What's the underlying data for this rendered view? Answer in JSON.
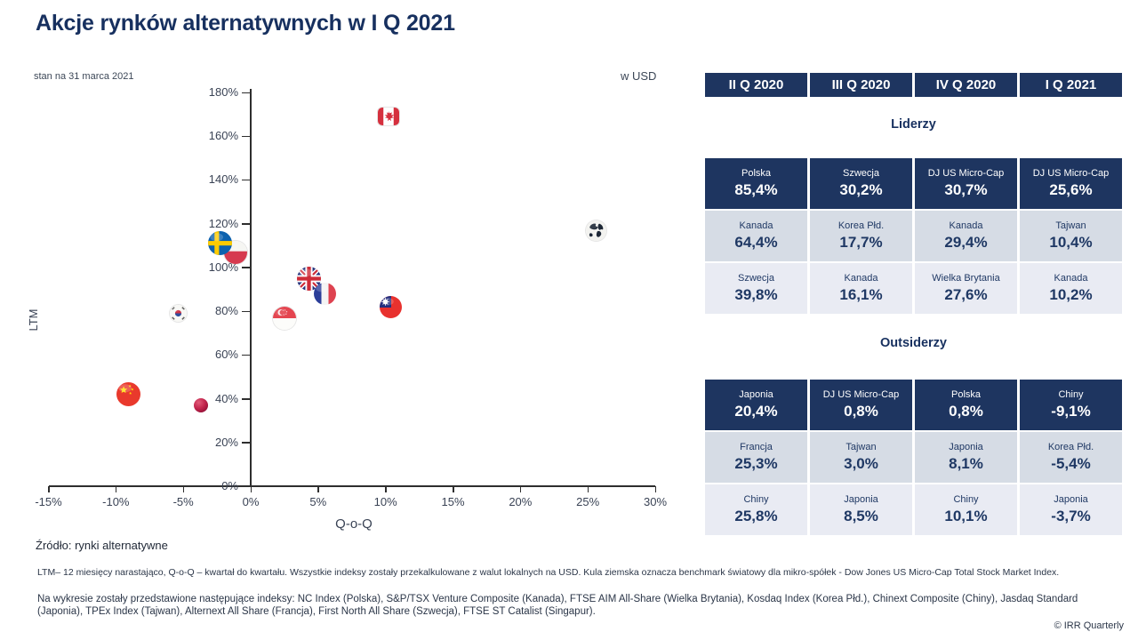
{
  "title": "Akcje rynków alternatywnych w I Q 2021",
  "subtitle": "stan na 31 marca 2021",
  "currency_note": "w USD",
  "chart_data": {
    "type": "scatter",
    "xlabel": "Q-o-Q",
    "ylabel": "LTM",
    "x_range": [
      -15,
      30
    ],
    "y_range": [
      0,
      180
    ],
    "x_ticks": [
      -15,
      -10,
      -5,
      0,
      5,
      10,
      15,
      20,
      25,
      30
    ],
    "y_ticks": [
      0,
      20,
      40,
      60,
      80,
      100,
      120,
      140,
      160,
      180
    ],
    "grid": false,
    "legend": "none",
    "units": "%",
    "points": [
      {
        "name": "Chiny",
        "flag": "china",
        "qoq": -9.1,
        "ltm": 42,
        "size": 27
      },
      {
        "name": "Korea Płd.",
        "flag": "korea",
        "qoq": -5.4,
        "ltm": 79,
        "size": 19
      },
      {
        "name": "Japonia",
        "flag": "japan",
        "qoq": -3.7,
        "ltm": 37,
        "size": 16
      },
      {
        "name": "Polska",
        "flag": "poland",
        "qoq": -1.1,
        "ltm": 107,
        "size": 26,
        "z": 1
      },
      {
        "name": "Szwecja",
        "flag": "sweden",
        "qoq": -2.3,
        "ltm": 111,
        "size": 27,
        "z": 2
      },
      {
        "name": "Singapur",
        "flag": "singapore",
        "qoq": 2.5,
        "ltm": 77,
        "size": 26
      },
      {
        "name": "Wielka Brytania",
        "flag": "uk",
        "qoq": 4.3,
        "ltm": 95,
        "size": 27,
        "z": 1
      },
      {
        "name": "Francja",
        "flag": "france",
        "qoq": 5.5,
        "ltm": 88,
        "size": 25,
        "z": 2
      },
      {
        "name": "Tajwan",
        "flag": "taiwan",
        "qoq": 10.4,
        "ltm": 82,
        "size": 25
      },
      {
        "name": "Kanada",
        "flag": "canada",
        "qoq": 10.2,
        "ltm": 169,
        "size": 24,
        "w": 24,
        "h": 20
      },
      {
        "name": "DJ US Micro-Cap",
        "flag": "globe",
        "qoq": 25.6,
        "ltm": 117,
        "size": 23
      }
    ]
  },
  "tables": {
    "quarters": [
      "II Q 2020",
      "III Q 2020",
      "IV Q 2020",
      "I Q 2021"
    ],
    "sections": [
      {
        "title": "Liderzy",
        "rows": [
          [
            {
              "name": "Polska",
              "value": "85,4%"
            },
            {
              "name": "Szwecja",
              "value": "30,2%"
            },
            {
              "name": "DJ US Micro-Cap",
              "value": "30,7%"
            },
            {
              "name": "DJ US Micro-Cap",
              "value": "25,6%"
            }
          ],
          [
            {
              "name": "Kanada",
              "value": "64,4%"
            },
            {
              "name": "Korea Płd.",
              "value": "17,7%"
            },
            {
              "name": "Kanada",
              "value": "29,4%"
            },
            {
              "name": "Tajwan",
              "value": "10,4%"
            }
          ],
          [
            {
              "name": "Szwecja",
              "value": "39,8%"
            },
            {
              "name": "Kanada",
              "value": "16,1%"
            },
            {
              "name": "Wielka Brytania",
              "value": "27,6%"
            },
            {
              "name": "Kanada",
              "value": "10,2%"
            }
          ]
        ]
      },
      {
        "title": "Outsiderzy",
        "rows": [
          [
            {
              "name": "Japonia",
              "value": "20,4%"
            },
            {
              "name": "DJ US Micro-Cap",
              "value": "0,8%"
            },
            {
              "name": "Polska",
              "value": "0,8%"
            },
            {
              "name": "Chiny",
              "value": "-9,1%"
            }
          ],
          [
            {
              "name": "Francja",
              "value": "25,3%"
            },
            {
              "name": "Tajwan",
              "value": "3,0%"
            },
            {
              "name": "Japonia",
              "value": "8,1%"
            },
            {
              "name": "Korea Płd.",
              "value": "-5,4%"
            }
          ],
          [
            {
              "name": "Chiny",
              "value": "25,8%"
            },
            {
              "name": "Japonia",
              "value": "8,5%"
            },
            {
              "name": "Chiny",
              "value": "10,1%"
            },
            {
              "name": "Japonia",
              "value": "-3,7%"
            }
          ]
        ]
      }
    ]
  },
  "footer": {
    "source": "Źródło: rynki alternatywne",
    "note1": "LTM– 12 miesięcy narastająco, Q-o-Q – kwartał do kwartału. Wszystkie indeksy zostały przekalkulowane z walut lokalnych na USD. Kula ziemska oznacza benchmark światowy dla mikro-spółek - Dow Jones US Micro-Cap Total Stock Market Index.",
    "note2": "Na wykresie zostały przedstawione następujące indeksy: NC Index (Polska), S&P/TSX Venture Composite (Kanada), FTSE AIM All-Share (Wielka Brytania), Kosdaq Index (Korea Płd.), Chinext Composite (Chiny), Jasdaq Standard (Japonia), TPEx Index (Tajwan), Alternext All Share (Francja), First North All Share (Szwecja), FTSE ST Catalist (Singapur).",
    "copyright": "© IRR Quarterly"
  },
  "colors": {
    "navy": "#1E3560",
    "row_mid": "#D6DCE5",
    "row_light": "#E9EBF3",
    "title_text": "#17305F"
  }
}
